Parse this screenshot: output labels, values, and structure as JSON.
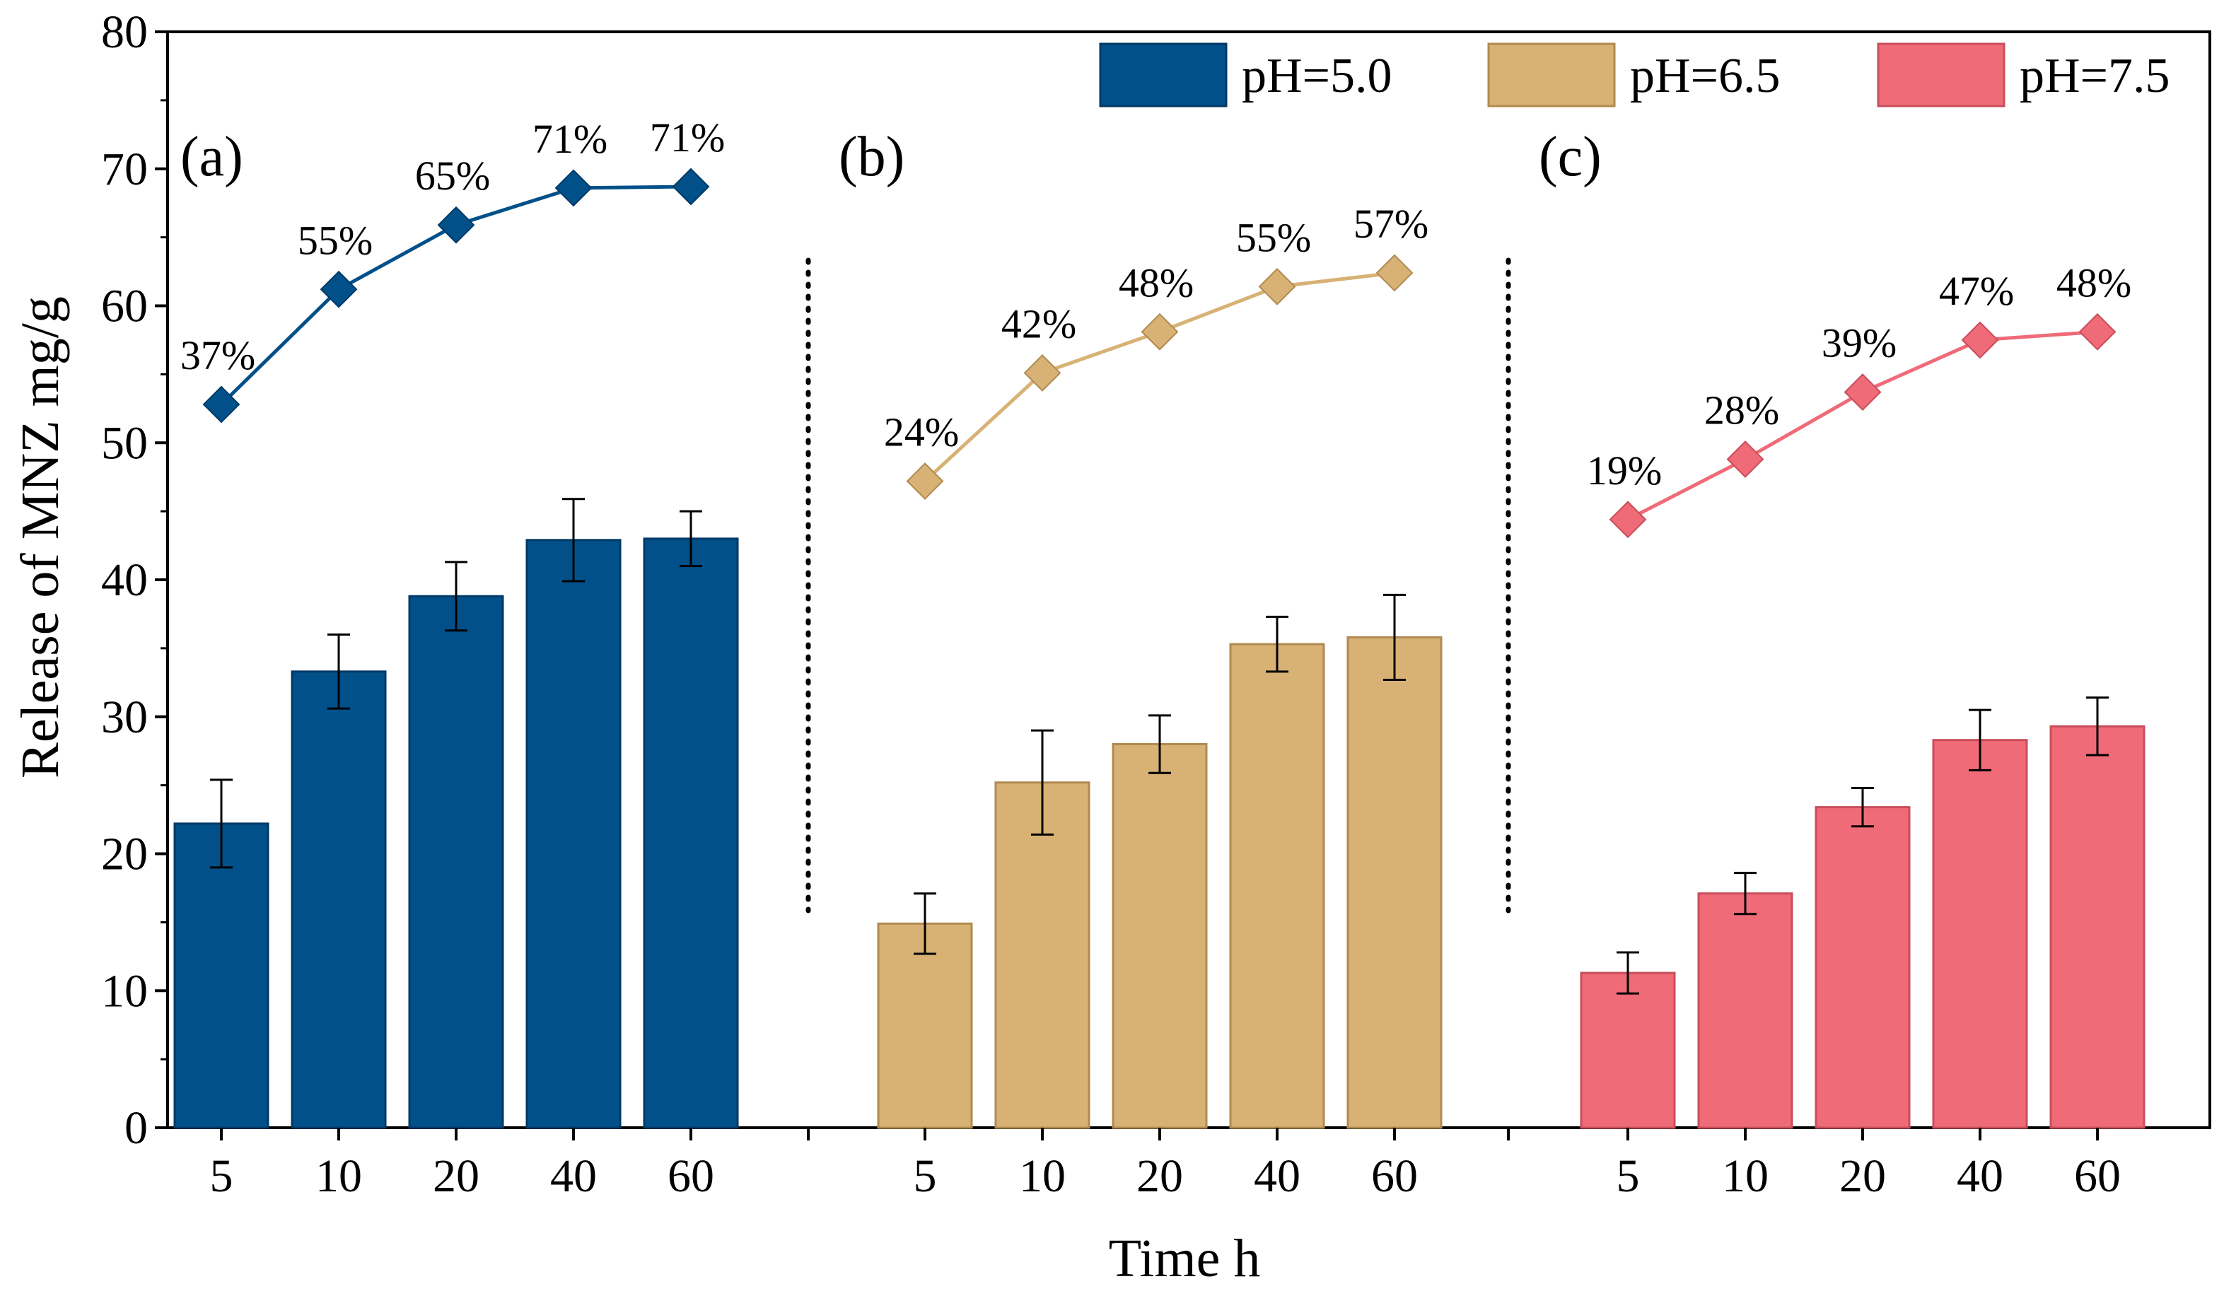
{
  "chart_data": {
    "type": "bar",
    "title": "",
    "xlabel": "Time h",
    "ylabel": "Release of MNZ mg/g",
    "ylim": [
      0,
      80
    ],
    "yticks": [
      0,
      10,
      20,
      30,
      40,
      50,
      60,
      70,
      80
    ],
    "grid": false,
    "legend_position": "top-right",
    "categories": [
      "5",
      "10",
      "20",
      "40",
      "60"
    ],
    "series": [
      {
        "name": "pH=5.0",
        "panel": "(a)",
        "color": "#02508a",
        "edge_color": "#013a66",
        "values": [
          22.2,
          33.3,
          38.8,
          42.9,
          43.0
        ],
        "errors": [
          3.2,
          2.7,
          2.5,
          3.0,
          2.0
        ],
        "line_values": [
          52.8,
          61.2,
          65.9,
          68.6,
          68.7
        ],
        "line_labels": [
          "37%",
          "55%",
          "65%",
          "71%",
          "71%"
        ]
      },
      {
        "name": "pH=6.5",
        "panel": "(b)",
        "color": "#d8b275",
        "edge_color": "#b08a50",
        "values": [
          14.9,
          25.2,
          28.0,
          35.3,
          35.8
        ],
        "errors": [
          2.2,
          3.8,
          2.1,
          2.0,
          3.1
        ],
        "line_values": [
          47.2,
          55.1,
          58.1,
          61.4,
          62.4
        ],
        "line_labels": [
          "24%",
          "42%",
          "48%",
          "55%",
          "57%"
        ]
      },
      {
        "name": "pH=7.5",
        "panel": "(c)",
        "color": "#ef6b78",
        "edge_color": "#c94d5a",
        "values": [
          11.3,
          17.1,
          23.4,
          28.3,
          29.3
        ],
        "errors": [
          1.5,
          1.5,
          1.4,
          2.2,
          2.1
        ],
        "line_values": [
          44.4,
          48.8,
          53.7,
          57.5,
          58.1
        ],
        "line_labels": [
          "19%",
          "28%",
          "39%",
          "47%",
          "48%"
        ]
      }
    ]
  }
}
